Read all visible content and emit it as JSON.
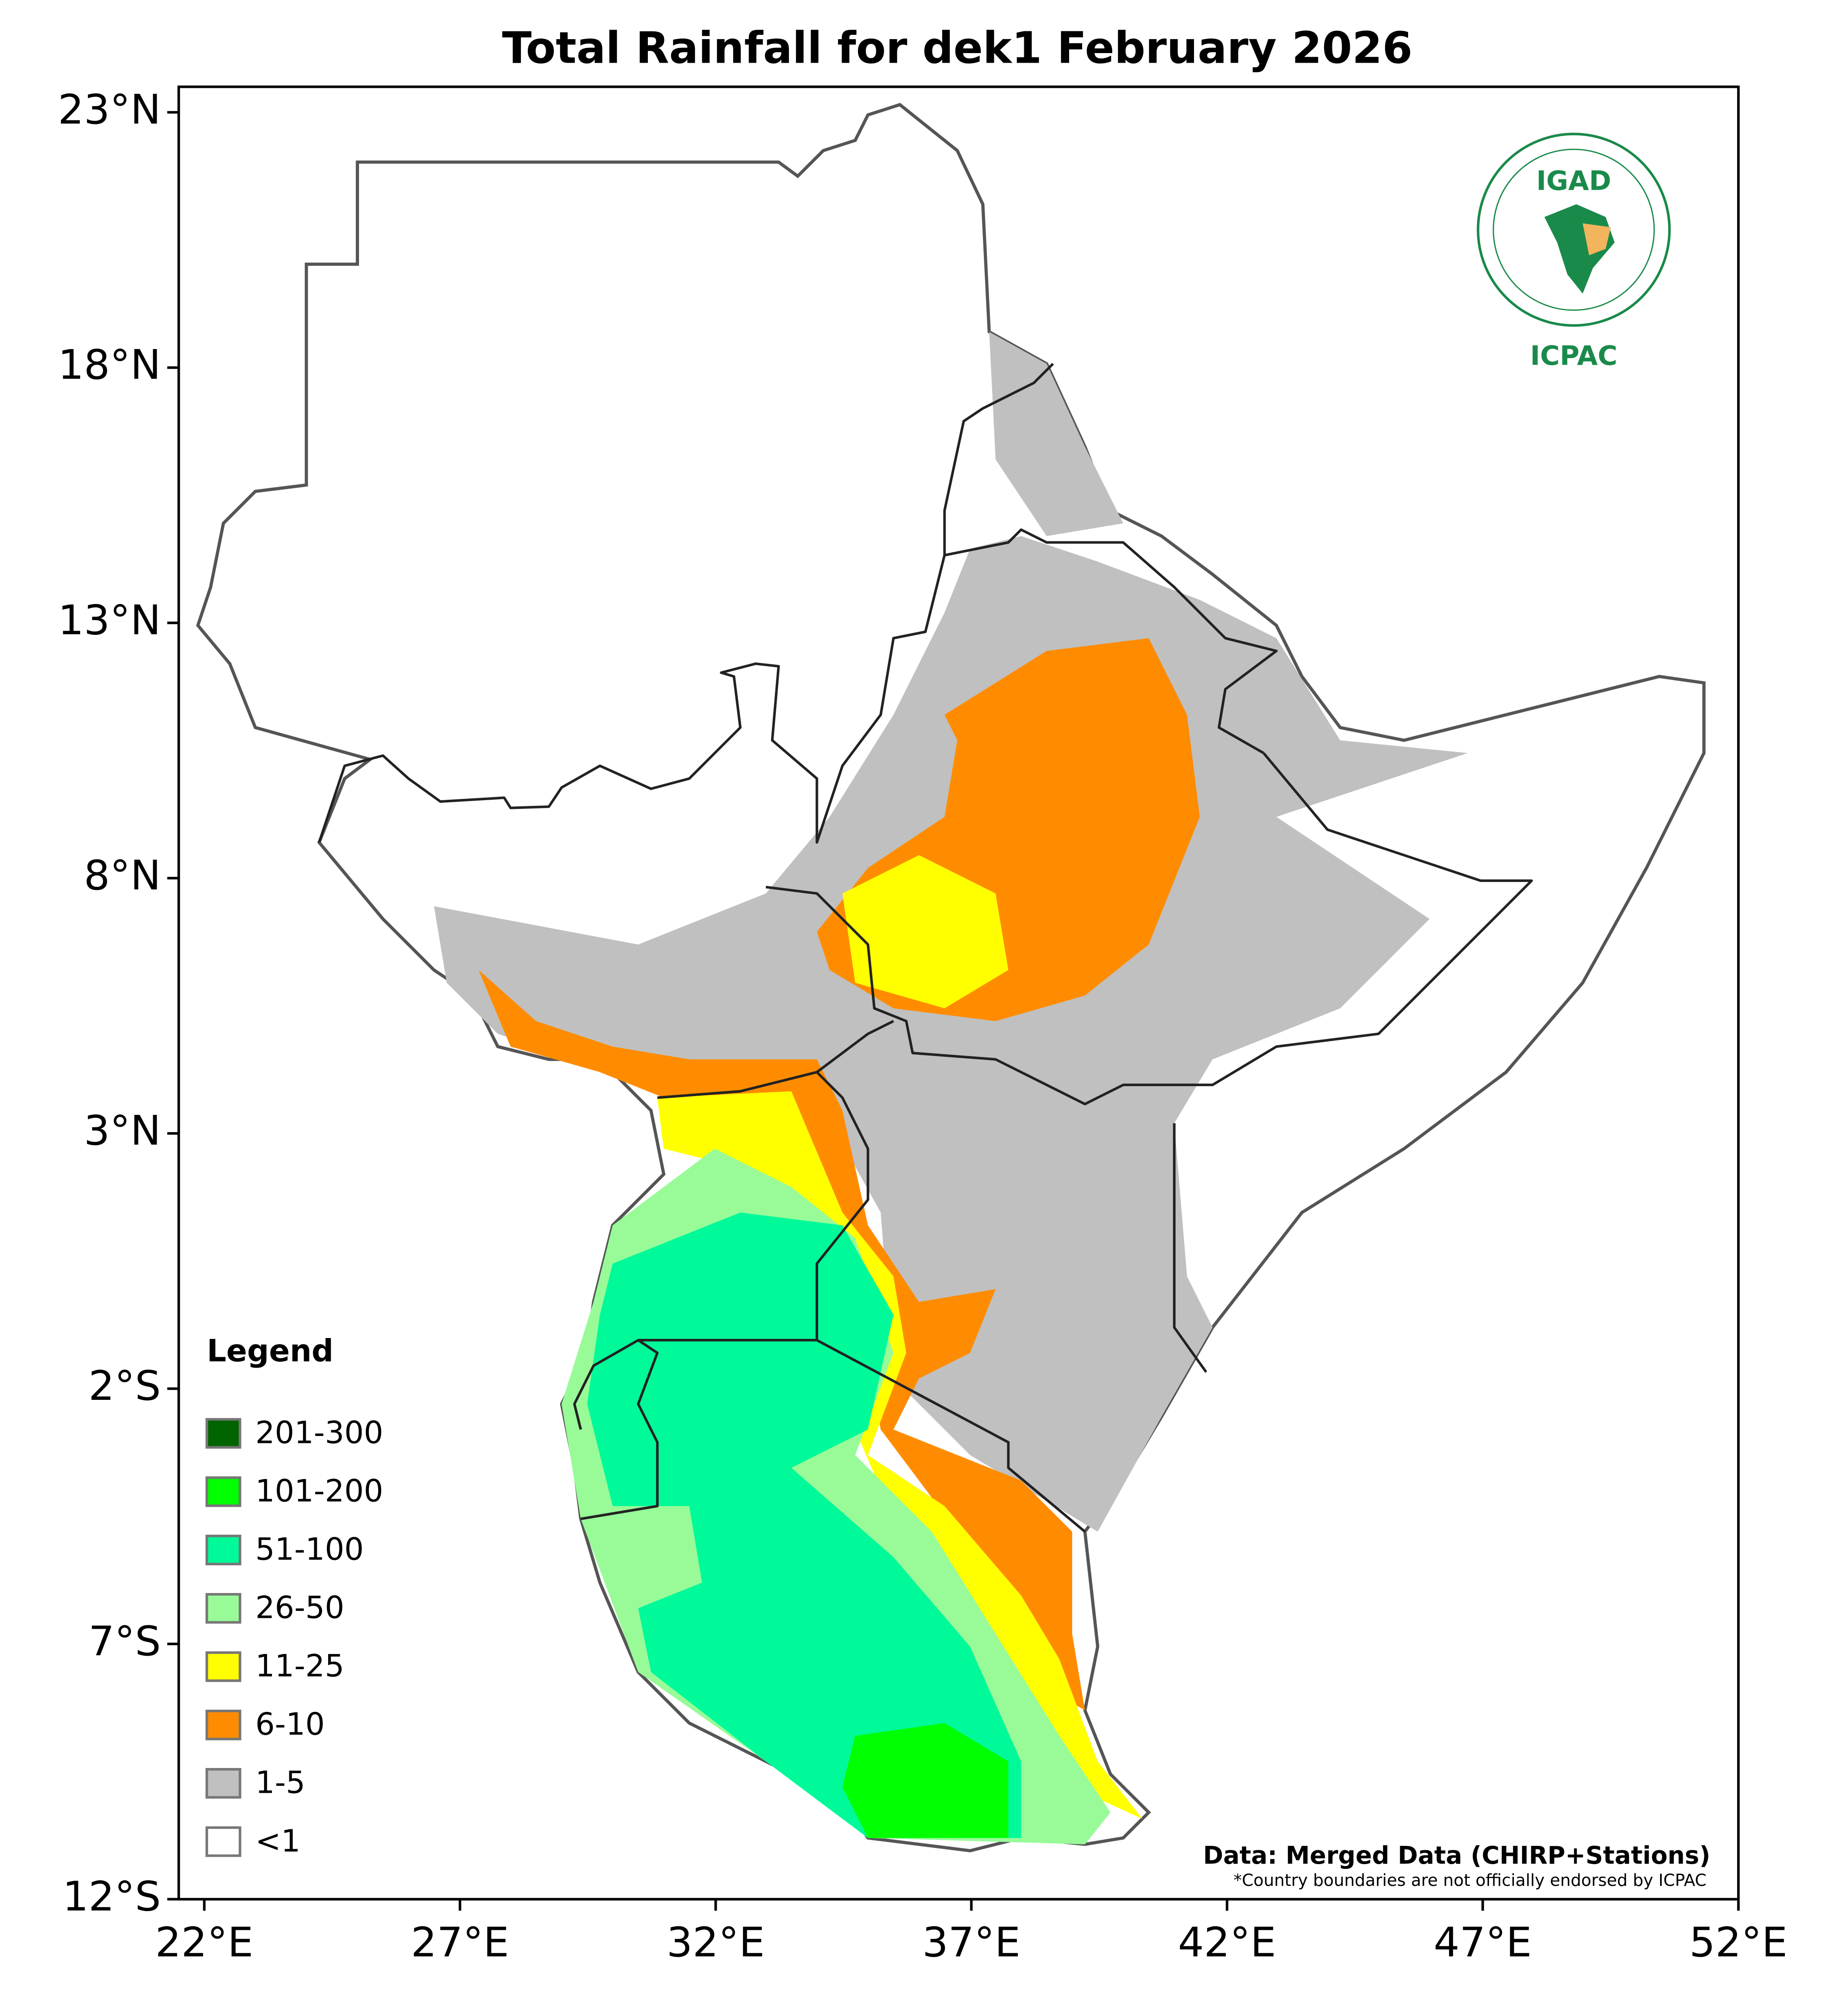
{
  "header": {
    "title": "Total Rainfall for dek1 February 2026"
  },
  "map": {
    "xlim": [
      21.5,
      52
    ],
    "ylim": [
      -12,
      23.5
    ],
    "xticks": [
      {
        "value": 22,
        "label": "22°E"
      },
      {
        "value": 27,
        "label": "27°E"
      },
      {
        "value": 32,
        "label": "32°E"
      },
      {
        "value": 37,
        "label": "37°E"
      },
      {
        "value": 42,
        "label": "42°E"
      },
      {
        "value": 47,
        "label": "47°E"
      },
      {
        "value": 52,
        "label": "52°E"
      }
    ],
    "yticks": [
      {
        "value": -12,
        "label": "12°S"
      },
      {
        "value": -7,
        "label": "7°S"
      },
      {
        "value": -2,
        "label": "2°S"
      },
      {
        "value": 3,
        "label": "3°N"
      },
      {
        "value": 8,
        "label": "8°N"
      },
      {
        "value": 13,
        "label": "13°N"
      },
      {
        "value": 18,
        "label": "18°N"
      },
      {
        "value": 23,
        "label": "23°N"
      }
    ]
  },
  "legend": {
    "title": "Legend",
    "items": [
      {
        "label": "201-300",
        "color": "#006400"
      },
      {
        "label": "101-200",
        "color": "#00ff00"
      },
      {
        "label": "51-100",
        "color": "#00fa9a"
      },
      {
        "label": "26-50",
        "color": "#98fb98"
      },
      {
        "label": "11-25",
        "color": "#ffff00"
      },
      {
        "label": "6-10",
        "color": "#ff8c00"
      },
      {
        "label": "1-5",
        "color": "#c0c0c0"
      },
      {
        "label": "<1",
        "color": "#ffffff"
      }
    ]
  },
  "logo": {
    "name": "IGAD",
    "org": "ICPAC"
  },
  "credits": {
    "source": "Data: Merged Data (CHIRP+Stations)",
    "note": "*Country boundaries are not officially endorsed by ICPAC"
  }
}
